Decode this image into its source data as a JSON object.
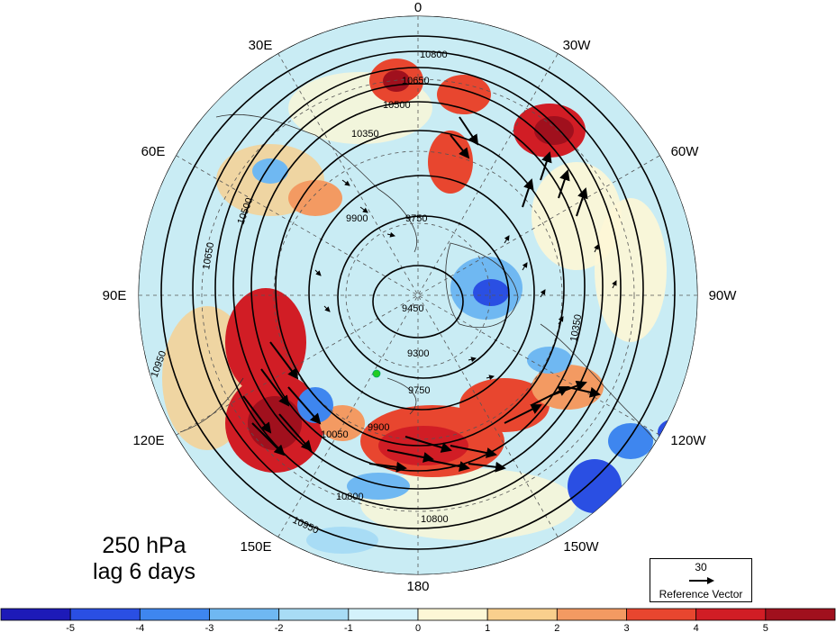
{
  "map": {
    "projection": "north-polar-stereographic",
    "field_colors": {
      "land": "#c9ecf4",
      "ocean": "#d6f1f7"
    },
    "longitude_labels": [
      "0",
      "30W",
      "60W",
      "90W",
      "120W",
      "150W",
      "180",
      "150E",
      "120E",
      "90E",
      "60E",
      "30E"
    ],
    "contour_labels": [
      "10800",
      "10650",
      "10500",
      "10350",
      "9900",
      "9750",
      "9450",
      "9300",
      "10950",
      "10950",
      "10800",
      "10800",
      "10650",
      "10500",
      "10350",
      "10050",
      "9900",
      "9750"
    ],
    "marker_color": "#22cc22"
  },
  "title": {
    "line1": "250 hPa",
    "line2": "lag 6 days"
  },
  "reference_vector": {
    "value": "30",
    "label": "Reference Vector"
  },
  "colorbar": {
    "tick_labels": [
      "-5",
      "-4",
      "-3",
      "-2",
      "-1",
      "0",
      "1",
      "2",
      "3",
      "4",
      "5"
    ],
    "colors": [
      "#1d1ab8",
      "#2a4fe3",
      "#3e86ef",
      "#6fb8f2",
      "#a8dcf5",
      "#d4f2fb",
      "#fdf7d6",
      "#f9cf8d",
      "#f39a62",
      "#e8462f",
      "#d11d25",
      "#a0101d"
    ]
  }
}
